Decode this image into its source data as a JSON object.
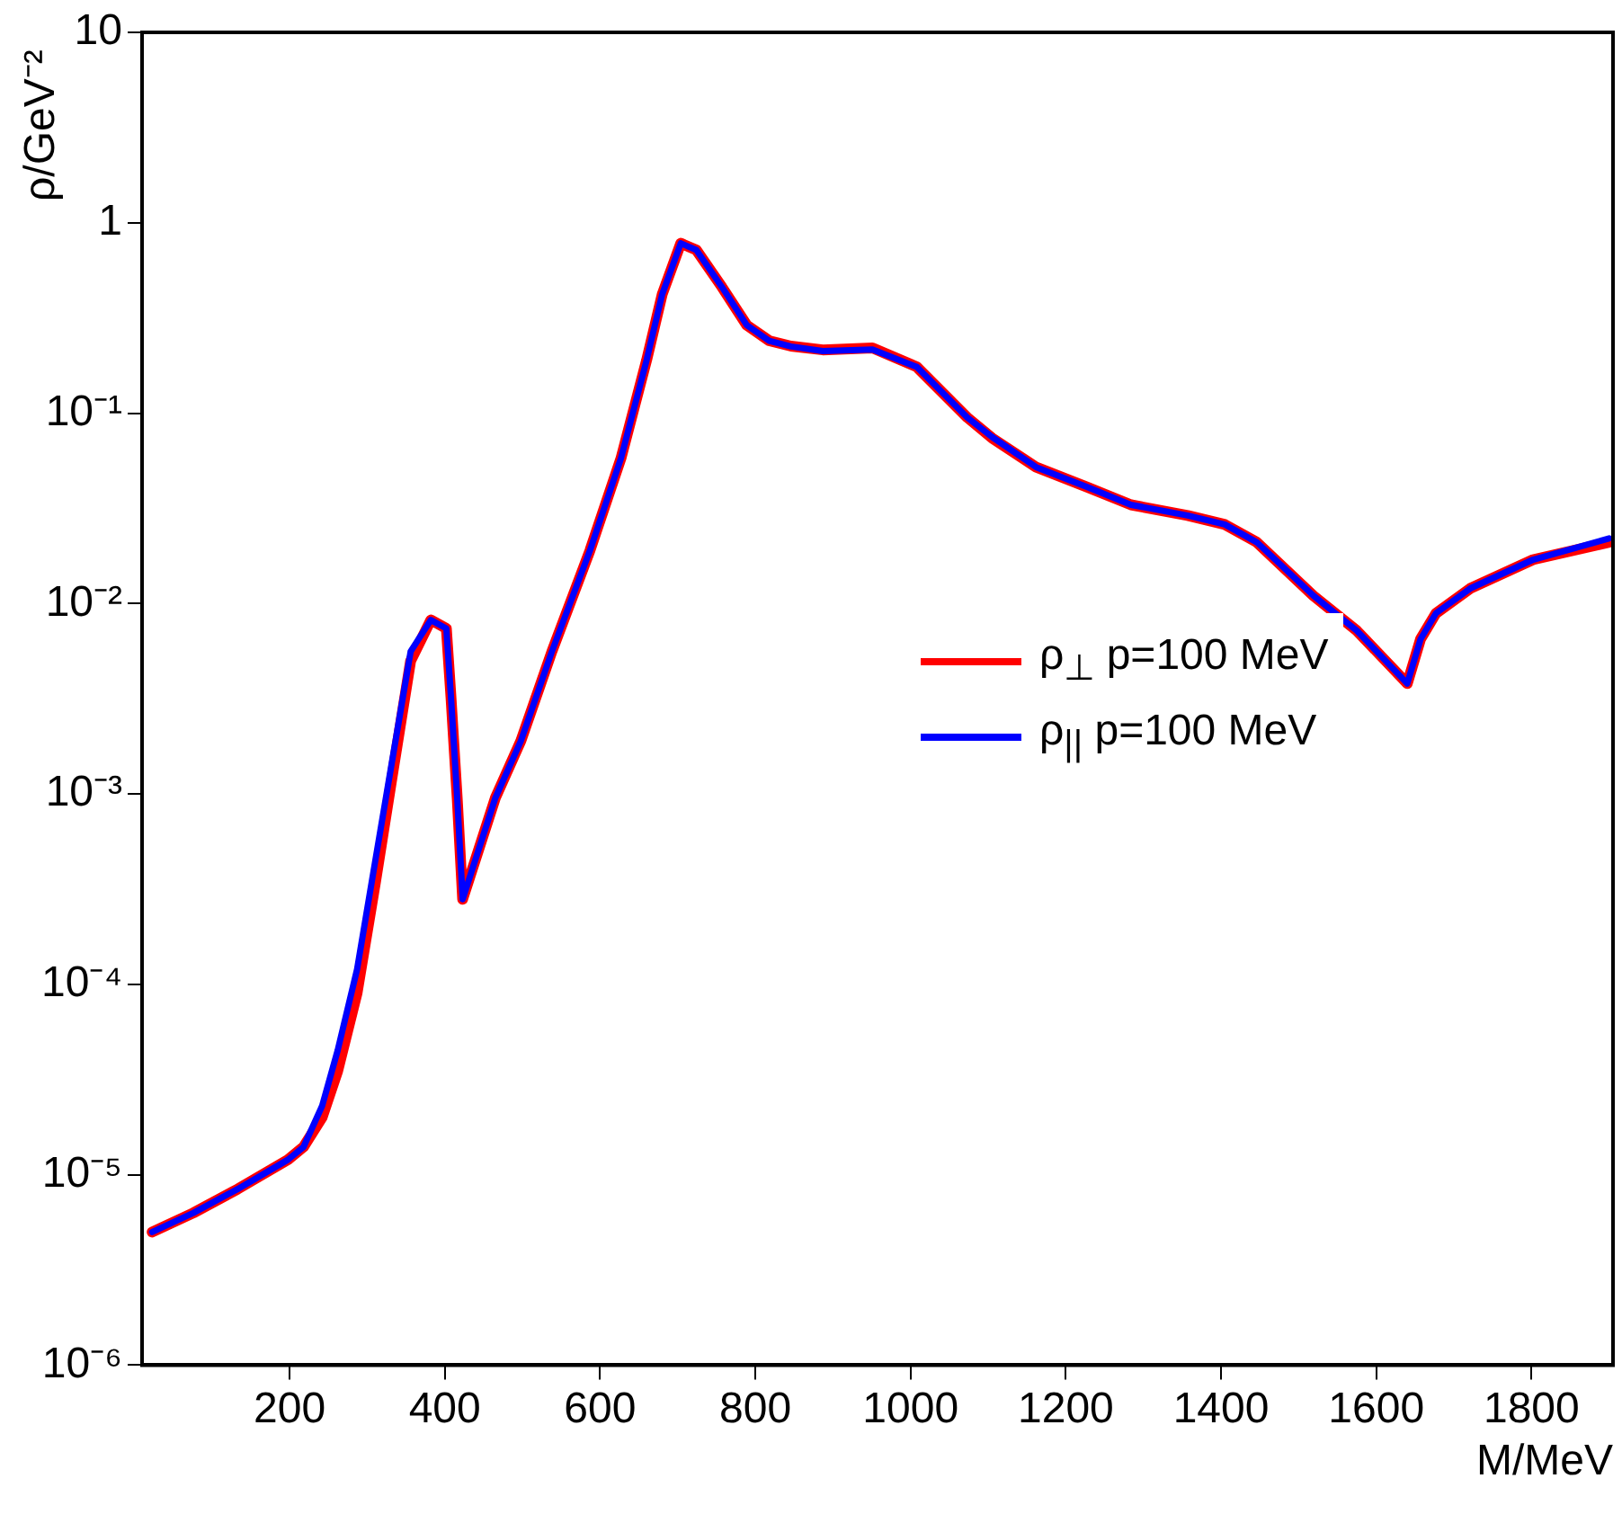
{
  "chart_data": {
    "type": "line",
    "xlabel": "M/MeV",
    "ylabel": "ρ/GeV⁻²",
    "x": [
      23,
      76,
      133,
      198,
      218,
      242,
      262,
      287,
      311,
      331,
      356,
      382,
      402,
      408,
      416,
      423,
      465,
      498,
      538,
      587,
      627,
      660,
      680,
      704,
      724,
      757,
      789,
      818,
      846,
      887,
      951,
      1008,
      1073,
      1105,
      1162,
      1227,
      1284,
      1357,
      1405,
      1446,
      1519,
      1575,
      1640,
      1657,
      1677,
      1721,
      1802,
      1900
    ],
    "series": [
      {
        "name": "ρ$_{⊥}$ p=100 MeV",
        "color": "#ff0000",
        "values": [
          5e-06,
          6.3e-06,
          8.4e-06,
          1.2e-05,
          1.4e-05,
          2e-05,
          3.5e-05,
          9e-05,
          0.00035,
          0.00115,
          0.005,
          0.0082,
          0.0074,
          0.0032,
          0.00095,
          0.00028,
          0.00095,
          0.0019,
          0.0056,
          0.019,
          0.058,
          0.19,
          0.42,
          0.78,
          0.72,
          0.46,
          0.29,
          0.24,
          0.225,
          0.215,
          0.22,
          0.175,
          0.095,
          0.074,
          0.052,
          0.041,
          0.033,
          0.029,
          0.026,
          0.021,
          0.011,
          0.0072,
          0.0038,
          0.0065,
          0.0089,
          0.012,
          0.017,
          0.021
        ]
      },
      {
        "name": "ρ$_{||}$  p=100 MeV",
        "color": "#0000ff",
        "values": [
          5e-06,
          6.3e-06,
          8.4e-06,
          1.2e-05,
          1.4e-05,
          2.3e-05,
          4.5e-05,
          0.00012,
          0.00046,
          0.0014,
          0.0056,
          0.0082,
          0.0074,
          0.0032,
          0.00095,
          0.00028,
          0.00095,
          0.0019,
          0.0056,
          0.019,
          0.058,
          0.19,
          0.42,
          0.78,
          0.72,
          0.46,
          0.29,
          0.24,
          0.224,
          0.212,
          0.216,
          0.175,
          0.095,
          0.075,
          0.052,
          0.041,
          0.033,
          0.029,
          0.026,
          0.021,
          0.011,
          0.0072,
          0.0038,
          0.0065,
          0.0089,
          0.012,
          0.017,
          0.022
        ]
      }
    ],
    "xlim": [
      10,
      1905
    ],
    "xticks": [
      200,
      400,
      600,
      800,
      1000,
      1200,
      1400,
      1600,
      1800
    ],
    "ylim": [
      1e-06,
      10
    ],
    "log": "y",
    "yticks": [
      {
        "value": 1e-06,
        "label": "10⁻⁶"
      },
      {
        "value": 1e-05,
        "label": "10⁻⁵"
      },
      {
        "value": 0.0001,
        "label": "10⁻⁴"
      },
      {
        "value": 0.001,
        "label": "10⁻³"
      },
      {
        "value": 0.01,
        "label": "10⁻²"
      },
      {
        "value": 0.1,
        "label": "10⁻¹"
      },
      1,
      10
    ],
    "grid": false,
    "legend": "right",
    "marker": "none",
    "line_style": "solid"
  }
}
